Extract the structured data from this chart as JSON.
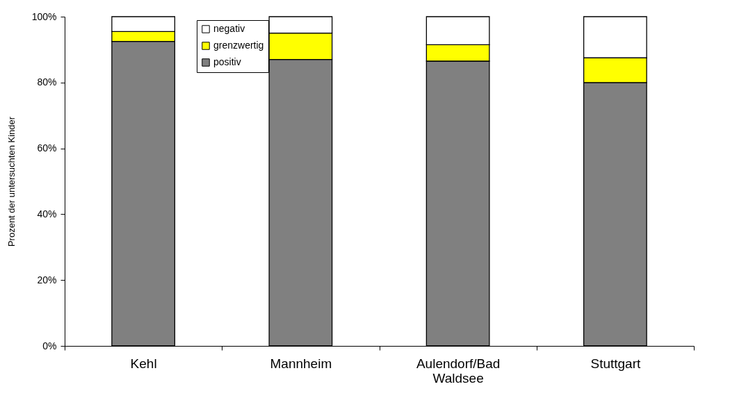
{
  "chart_data": {
    "type": "bar",
    "stacked": true,
    "ylabel": "Prozent der untersuchten Kinder",
    "categories": [
      "Kehl",
      "Mannheim",
      "Aulendorf/Bad Waldsee",
      "Stuttgart"
    ],
    "series": [
      {
        "name": "positiv",
        "color": "#808080",
        "values": [
          92.5,
          87,
          86.5,
          80
        ]
      },
      {
        "name": "grenzwertig",
        "color": "#ffff00",
        "values": [
          3,
          8,
          5,
          7.5
        ]
      },
      {
        "name": "negativ",
        "color": "#ffffff",
        "values": [
          4.5,
          5,
          8.5,
          12.5
        ]
      }
    ],
    "ylim": [
      0,
      100
    ],
    "yticks": [
      {
        "value": 0,
        "label": "0%"
      },
      {
        "value": 20,
        "label": "20%"
      },
      {
        "value": 40,
        "label": "40%"
      },
      {
        "value": 60,
        "label": "60%"
      },
      {
        "value": 80,
        "label": "80%"
      },
      {
        "value": 100,
        "label": "100%"
      }
    ],
    "legend": "top left",
    "grid": false
  }
}
